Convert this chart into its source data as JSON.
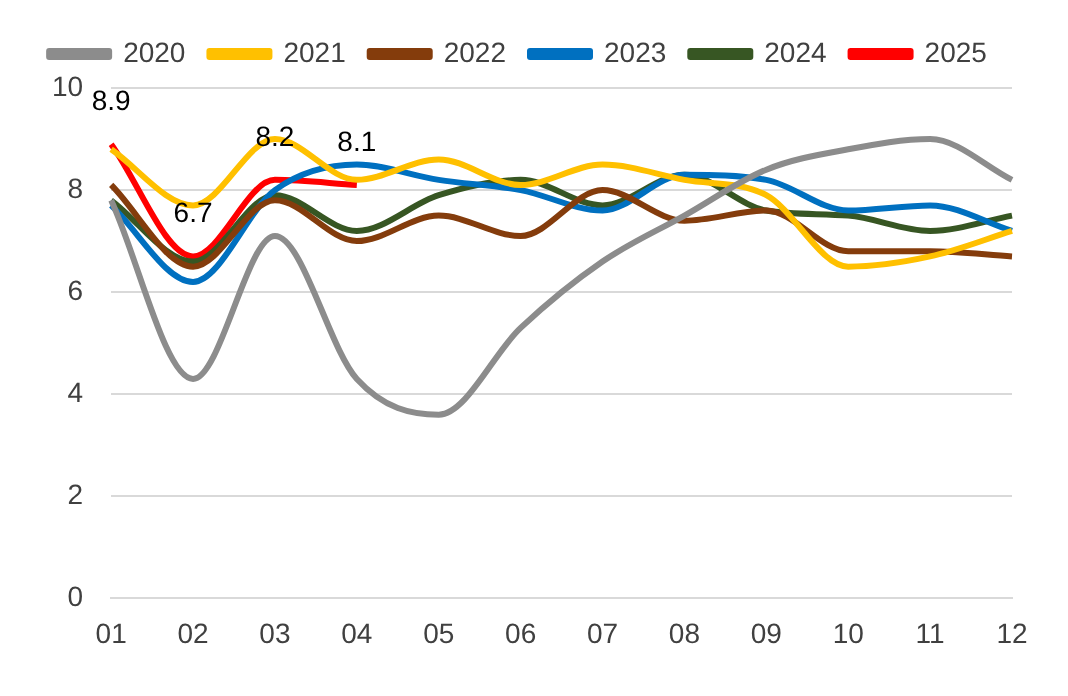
{
  "chart_data": {
    "type": "line",
    "categories": [
      "01",
      "02",
      "03",
      "04",
      "05",
      "06",
      "07",
      "08",
      "09",
      "10",
      "11",
      "12"
    ],
    "series": [
      {
        "name": "2020",
        "color": "#8c8c8c",
        "values": [
          7.8,
          4.3,
          7.1,
          4.3,
          3.6,
          5.3,
          6.6,
          7.5,
          8.4,
          8.8,
          9.0,
          8.2
        ]
      },
      {
        "name": "2021",
        "color": "#ffc000",
        "values": [
          8.8,
          7.7,
          9.0,
          8.2,
          8.6,
          8.1,
          8.5,
          8.2,
          7.9,
          6.5,
          6.7,
          7.2
        ]
      },
      {
        "name": "2022",
        "color": "#843c0c",
        "values": [
          8.1,
          6.5,
          7.8,
          7.0,
          7.5,
          7.1,
          8.0,
          7.4,
          7.6,
          6.8,
          6.8,
          6.7
        ]
      },
      {
        "name": "2023",
        "color": "#0070c0",
        "values": [
          7.7,
          6.2,
          8.0,
          8.5,
          8.2,
          8.0,
          7.6,
          8.3,
          8.2,
          7.6,
          7.7,
          7.2
        ]
      },
      {
        "name": "2024",
        "color": "#375623",
        "values": [
          7.8,
          6.6,
          7.9,
          7.2,
          7.9,
          8.2,
          7.7,
          8.3,
          7.6,
          7.5,
          7.2,
          7.5
        ]
      },
      {
        "name": "2025",
        "color": "#ff0000",
        "values": [
          8.9,
          6.7,
          8.2,
          8.1,
          null,
          null,
          null,
          null,
          null,
          null,
          null,
          null
        ],
        "value_labels": [
          "8.9",
          "6.7",
          "8.2",
          "8.1",
          null,
          null,
          null,
          null,
          null,
          null,
          null,
          null
        ]
      }
    ],
    "ylim": [
      0,
      10
    ],
    "yticks": [
      0,
      2,
      4,
      6,
      8,
      10
    ],
    "grid": "y",
    "legend": "top",
    "marker": "none",
    "line_style": "solid"
  }
}
